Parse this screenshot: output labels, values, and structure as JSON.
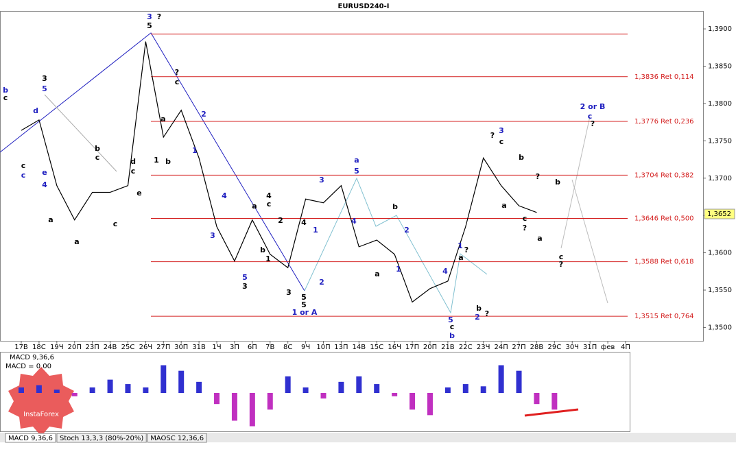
{
  "chart_data": {
    "type": "line",
    "title": "EURUSD240-I",
    "categories": [
      "17В",
      "18С",
      "19Ч",
      "20П",
      "23П",
      "24В",
      "25С",
      "26Ч",
      "27П",
      "30П",
      "31В",
      "1Ч",
      "3П",
      "6П",
      "7В",
      "8С",
      "9Ч",
      "10П",
      "13П",
      "14В",
      "15С",
      "16Ч",
      "17П",
      "20П",
      "21В",
      "22С",
      "23Ч",
      "24П",
      "27П",
      "28В",
      "29С",
      "30Ч",
      "31П",
      "фев",
      "4П"
    ],
    "series": [
      {
        "name": "EURUSD240-I",
        "color": "#000000",
        "values": [
          1.3764,
          1.3778,
          1.369,
          1.3644,
          1.3681,
          1.3681,
          1.369,
          1.3883,
          1.3755,
          1.3791,
          1.3727,
          1.3635,
          1.3589,
          1.3644,
          1.3598,
          1.358,
          1.3672,
          1.3667,
          1.369,
          1.3608,
          1.3617,
          1.3598,
          1.3534,
          1.3552,
          1.3562,
          1.3635,
          1.3727,
          1.369,
          1.3663,
          1.3654,
          null,
          null,
          null,
          null,
          null
        ]
      }
    ],
    "ylim": [
      1.3482,
      1.3924
    ],
    "yticks": [
      {
        "value": 1.39,
        "label": "1,3900"
      },
      {
        "value": 1.385,
        "label": "1,3850"
      },
      {
        "value": 1.38,
        "label": "1,3800"
      },
      {
        "value": 1.375,
        "label": "1,3750"
      },
      {
        "value": 1.37,
        "label": "1,3700"
      },
      {
        "value": 1.365,
        "label": "1,3650"
      },
      {
        "value": 1.36,
        "label": "1,3600"
      },
      {
        "value": 1.355,
        "label": "1,3550"
      },
      {
        "value": 1.35,
        "label": "1,3500"
      }
    ],
    "current_price": {
      "value": 1.3652,
      "label": "1,3652"
    },
    "levels": [
      {
        "value": 1.3893
      },
      {
        "value": 1.3836,
        "label": "1,3836 Ret 0,114"
      },
      {
        "value": 1.3776,
        "label": "1,3776 Ret 0,236"
      },
      {
        "value": 1.3704,
        "label": "1,3704 Ret 0,382"
      },
      {
        "value": 1.3646,
        "label": "1,3646 Ret 0,500"
      },
      {
        "value": 1.3588,
        "label": "1,3588 Ret 0,618"
      },
      {
        "value": 1.3515,
        "label": "1,3515 Ret 0,764"
      }
    ],
    "level_color": "#d42020",
    "wave_labels": [
      "3",
      "?",
      "5",
      "?",
      "c",
      "2",
      "1",
      "a",
      "1",
      "b",
      "3",
      "5",
      "b",
      "c",
      "d",
      "e",
      "4",
      "c",
      "c",
      "a",
      "a",
      "b",
      "c",
      "c",
      "d",
      "c",
      "e",
      "3",
      "4",
      "5",
      "3",
      "a",
      "4",
      "c",
      "b",
      "1",
      "2",
      "3",
      "4",
      "5",
      "5",
      "1 or A",
      "1",
      "2",
      "3",
      "a",
      "5",
      "4",
      "b",
      "2",
      "1",
      "a",
      "4",
      "5",
      "c",
      "b",
      "1",
      "?",
      "a",
      "b",
      "2",
      "?",
      "?",
      "3",
      "c",
      "b",
      "a",
      "?",
      "c",
      "?",
      "a",
      "b",
      "c",
      "?",
      "2 or B",
      "c",
      "?"
    ],
    "indicator": {
      "name": "MACD 9,36,6",
      "value_text": "MACD = 0,00",
      "color": "#3030d0",
      "negative_color": "#c030c0",
      "values": [
        0.0005,
        0.0007,
        0.0003,
        -0.0003,
        0.0005,
        0.0012,
        0.0008,
        0.0005,
        0.0025,
        0.002,
        0.001,
        -0.001,
        -0.0025,
        -0.003,
        -0.0015,
        0.0015,
        0.0005,
        -0.0005,
        0.001,
        0.0015,
        0.0008,
        -0.0003,
        -0.0015,
        -0.002,
        0.0005,
        0.0008,
        0.0006,
        0.0025,
        0.002,
        -0.001,
        -0.0015,
        null,
        null,
        null,
        null
      ],
      "ylim": [
        -0.0034,
        0.0034
      ]
    },
    "tabs": [
      "MACD 9,36,6",
      "Stoch 13,3,3 (80%-20%)",
      "MAOSC 12,36,6"
    ],
    "watermark": "InstaForex"
  }
}
